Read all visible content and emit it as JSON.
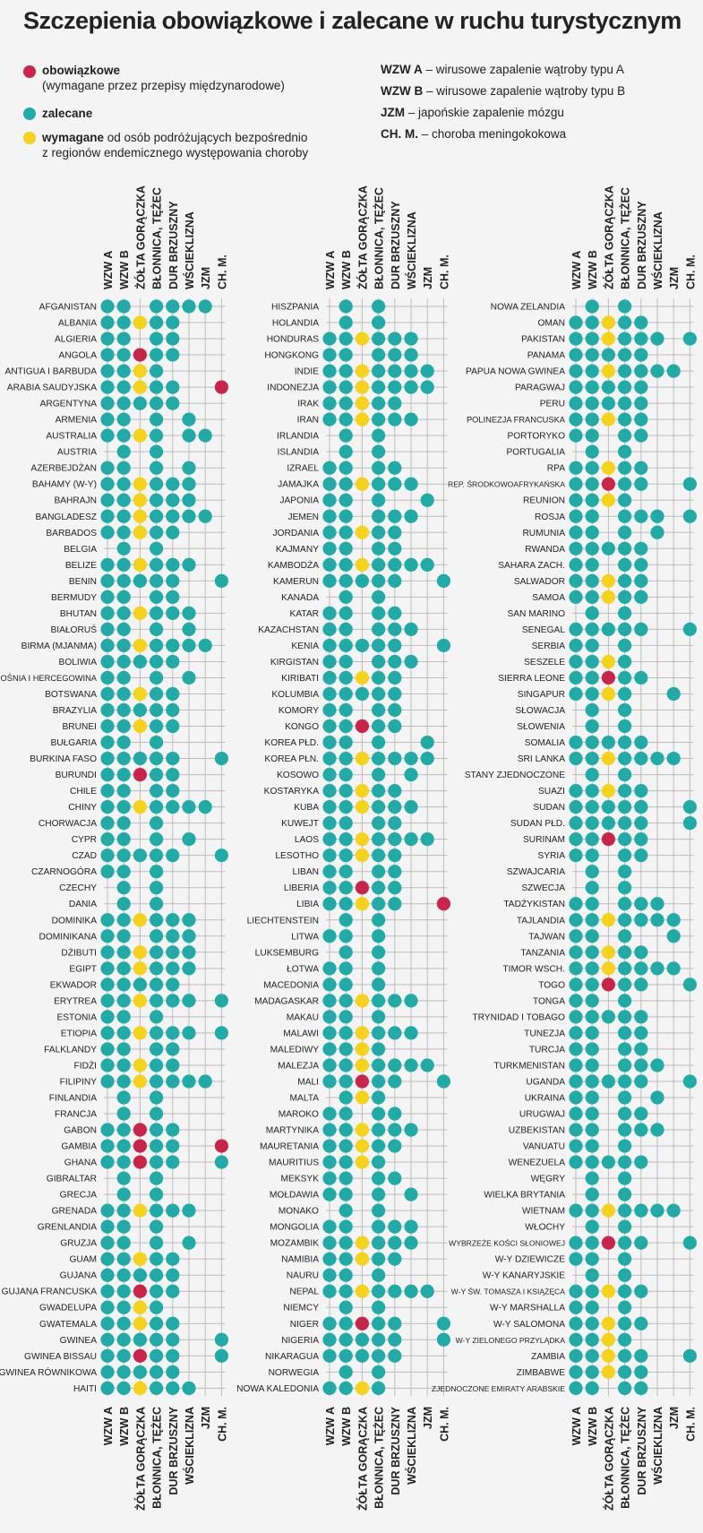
{
  "title": "Szczepienia obowiązkowe i zalecane w ruchu turystycznym",
  "colors": {
    "red": "#c8254a",
    "teal": "#22aaa6",
    "yellow": "#f5d21b",
    "grid": "#bdbdbd",
    "bg": "#f4f4f4"
  },
  "legend": {
    "mandatory_label": "obowiązkowe",
    "mandatory_note": "(wymagane przez przepisy międzynarodowe)",
    "recommended_label": "zalecane",
    "required_label": "wymagane",
    "required_note_1": " od osób podróżujących bezpośrednio",
    "required_note_2": "z regionów endemicznego występowania choroby"
  },
  "abbreviations": [
    {
      "abbr": "WZW A",
      "desc": " – wirusowe zapalenie wątroby typu A"
    },
    {
      "abbr": "WZW B",
      "desc": " – wirusowe zapalenie wątroby typu B"
    },
    {
      "abbr": "JZM",
      "desc": " – japońskie zapalenie mózgu"
    },
    {
      "abbr": "CH. M.",
      "desc": " – choroba meningokokowa"
    }
  ],
  "columns": [
    "WZW A",
    "WZW B",
    "ŻÓŁTA GORĄCZKA",
    "BŁONNICA, TĘŻEC",
    "DUR BRZUSZNY",
    "WŚCIEKLIZNA",
    "JZM",
    "CH. M."
  ],
  "panels": [
    {
      "rows": [
        [
          "AFGANISTAN",
          "tt.tttt.."
        ],
        [
          "ALBANIA",
          "ttytt..."
        ],
        [
          "ALGIERIA",
          "tt.tt..."
        ],
        [
          "ANGOLA",
          "ttrtt..."
        ],
        [
          "ANTIGUA I BARBUDA",
          "ttyt...."
        ],
        [
          "ARABIA SAUDYJSKA",
          "ttytt..r"
        ],
        [
          "ARGENTYNA",
          "ttttt..."
        ],
        [
          "ARMENIA",
          "tt.t.t.."
        ],
        [
          "AUSTRALIA",
          "ttyt.tt."
        ],
        [
          "AUSTRIA",
          ".t.t...."
        ],
        [
          "AZERBEJDŻAN",
          "tt.t.t.."
        ],
        [
          "BAHAMY (W-Y)",
          "ttyttt.."
        ],
        [
          "BAHRAJN",
          "ttyttt.."
        ],
        [
          "BANGLADESZ",
          "ttytttt."
        ],
        [
          "BARBADOS",
          "ttytt..."
        ],
        [
          "BELGIA",
          ".t.t...."
        ],
        [
          "BELIZE",
          "ttyttt.."
        ],
        [
          "BENIN",
          "ttttt..t"
        ],
        [
          "BERMUDY",
          "tt.tt..."
        ],
        [
          "BHUTAN",
          "ttyttt.."
        ],
        [
          "BIAŁORUŚ",
          "tt.t.t.."
        ],
        [
          "BIRMA (MJANMA)",
          "ttytttt."
        ],
        [
          "BOLIWIA",
          "ttttt..."
        ],
        [
          "BOŚNIA I HERCEGOWINA",
          "tt.t.t.."
        ],
        [
          "BOTSWANA",
          "ttytt..."
        ],
        [
          "BRAZYLIA",
          "ttttt..."
        ],
        [
          "BRUNEI",
          "ttytt..."
        ],
        [
          "BUŁGARIA",
          "tt.t...."
        ],
        [
          "BURKINA FASO",
          "ttttt..t"
        ],
        [
          "BURUNDI",
          "ttrtt..."
        ],
        [
          "CHILE",
          "tt.tt..."
        ],
        [
          "CHINY",
          "ttytttt."
        ],
        [
          "CHORWACJA",
          "tt.t...."
        ],
        [
          "CYPR",
          "tt.t.t.."
        ],
        [
          "CZAD",
          "ttttt..t"
        ],
        [
          "CZARNOGÓRA",
          "tt.t...."
        ],
        [
          "CZECHY",
          ".t.t...."
        ],
        [
          "DANIA",
          ".t.t...."
        ],
        [
          "DOMINIKA",
          "ttyttt.."
        ],
        [
          "DOMINIKANA",
          "tt.ttt.."
        ],
        [
          "DŻIBUTI",
          "ttyttt.."
        ],
        [
          "EGIPT",
          "ttyttt.."
        ],
        [
          "EKWADOR",
          "ttttt..."
        ],
        [
          "ERYTREA",
          "ttyttt.t"
        ],
        [
          "ESTONIA",
          "tt.t...."
        ],
        [
          "ETIOPIA",
          "ttyttt.t"
        ],
        [
          "FALKLANDY",
          "tt.tt..."
        ],
        [
          "FIDŻI",
          "ttytt..."
        ],
        [
          "FILIPINY",
          "ttytttt."
        ],
        [
          "FINLANDIA",
          ".t.t...."
        ],
        [
          "FRANCJA",
          ".t.t...."
        ],
        [
          "GABON",
          "ttrtt..."
        ],
        [
          "GAMBIA",
          "ttrtt..r"
        ],
        [
          "GHANA",
          "ttrtt..t"
        ],
        [
          "GIBRALTAR",
          ".t.t...."
        ],
        [
          "GRECJA",
          ".t.t...."
        ],
        [
          "GRENADA",
          "ttyttt.."
        ],
        [
          "GRENLANDIA",
          "tt.t...."
        ],
        [
          "GRUZJA",
          "tt.t.t.."
        ],
        [
          "GUAM",
          "ttytt..."
        ],
        [
          "GUJANA",
          "ttttt..."
        ],
        [
          "GUJANA FRANCUSKA",
          "ttrtt..."
        ],
        [
          "GWADELUPA",
          "ttyt...."
        ],
        [
          "GWATEMALA",
          "ttytt..."
        ],
        [
          "GWINEA",
          "ttttt..t"
        ],
        [
          "GWINEA BISSAU",
          "ttrtt..t"
        ],
        [
          "GWINEA RÓWNIKOWA",
          "ttttt..."
        ],
        [
          "HAITI",
          "ttyttt.."
        ]
      ]
    },
    {
      "rows": [
        [
          "HISZPANIA",
          ".t.t...."
        ],
        [
          "HOLANDIA",
          ".t.t...."
        ],
        [
          "HONDURAS",
          "ttyttt.."
        ],
        [
          "HONGKONG",
          "tt.ttt.."
        ],
        [
          "INDIE",
          "ttytttt."
        ],
        [
          "INDONEZJA",
          "ttytttt."
        ],
        [
          "IRAK",
          "ttytt..."
        ],
        [
          "IRAN",
          "ttyttt.."
        ],
        [
          "IRLANDIA",
          ".t.t...."
        ],
        [
          "ISLANDIA",
          ".t.t...."
        ],
        [
          "IZRAEL",
          "tt.tt..."
        ],
        [
          "JAMAJKA",
          "ttyttt.."
        ],
        [
          "JAPONIA",
          "tt.t..t."
        ],
        [
          "JEMEN",
          "tt.ttt.."
        ],
        [
          "JORDANIA",
          "ttytt..."
        ],
        [
          "KAJMANY",
          "tt.tt..."
        ],
        [
          "KAMBODŻA",
          "ttytttt."
        ],
        [
          "KAMERUN",
          "ttttt..t"
        ],
        [
          "KANADA",
          ".t.t...."
        ],
        [
          "KATAR",
          "tt.tt..."
        ],
        [
          "KAZACHSTAN",
          "tt.ttt.."
        ],
        [
          "KENIA",
          "ttttt..t"
        ],
        [
          "KIRGISTAN",
          "tt.ttt.."
        ],
        [
          "KIRIBATI",
          "ttytt..."
        ],
        [
          "KOLUMBIA",
          "ttttt..."
        ],
        [
          "KOMORY",
          "tt.tt..."
        ],
        [
          "KONGO",
          "ttrtt..."
        ],
        [
          "KOREA PŁD.",
          "tt.t..t."
        ],
        [
          "KOREA PŁN.",
          "ttytttt."
        ],
        [
          "KOSOWO",
          "tt.t.t.."
        ],
        [
          "KOSTARYKA",
          "ttytt..."
        ],
        [
          "KUBA",
          "ttyttt.."
        ],
        [
          "KUWEJT",
          "tt.tt..."
        ],
        [
          "LAOS",
          "ttytttt."
        ],
        [
          "LESOTHO",
          "ttytt..."
        ],
        [
          "LIBAN",
          "tt.tt..."
        ],
        [
          "LIBERIA",
          "ttrtt..."
        ],
        [
          "LIBIA",
          "ttytt..r"
        ],
        [
          "LIECHTENSTEIN",
          ".t.t...."
        ],
        [
          "LITWA",
          "tt.t...."
        ],
        [
          "LUKSEMBURG",
          ".t.t...."
        ],
        [
          "ŁOTWA",
          "tt.t...."
        ],
        [
          "MACEDONIA",
          "tt.t...."
        ],
        [
          "MADAGASKAR",
          "ttyttt.."
        ],
        [
          "MAKAU",
          "tt.t...."
        ],
        [
          "MALAWI",
          "ttyttt.."
        ],
        [
          "MALEDIWY",
          "ttyt...."
        ],
        [
          "MALEZJA",
          "ttytttt."
        ],
        [
          "MALI",
          "ttrtt..t"
        ],
        [
          "MALTA",
          ".tyt...."
        ],
        [
          "MAROKO",
          "tt.tt..."
        ],
        [
          "MARTYNIKA",
          "ttyttt.."
        ],
        [
          "MAURETANIA",
          "ttytt..."
        ],
        [
          "MAURITIUS",
          "ttyt...."
        ],
        [
          "MEKSYK",
          "tt.tt..."
        ],
        [
          "MOŁDAWIA",
          "tt.t.t.."
        ],
        [
          "MONAKO",
          ".t.t...."
        ],
        [
          "MONGOLIA",
          "tt.ttt.."
        ],
        [
          "MOZAMBIK",
          "ttyttt.."
        ],
        [
          "NAMIBIA",
          "ttytt..."
        ],
        [
          "NAURU",
          "tt.t...."
        ],
        [
          "NEPAL",
          "ttytttt."
        ],
        [
          "NIEMCY",
          ".t.t...."
        ],
        [
          "NIGER",
          "ttrtt..t"
        ],
        [
          "NIGERIA",
          "ttttt..t"
        ],
        [
          "NIKARAGUA",
          "ttttt..."
        ],
        [
          "NORWEGIA",
          ".t.t...."
        ],
        [
          "NOWA KALEDONIA",
          "ttyt...."
        ]
      ]
    },
    {
      "rows": [
        [
          "NOWA ZELANDIA",
          ".t.t...."
        ],
        [
          "OMAN",
          "ttytt..."
        ],
        [
          "PAKISTAN",
          "ttyttt.t"
        ],
        [
          "PANAMA",
          "ttttt..."
        ],
        [
          "PAPUA NOWA GWINEA",
          "ttytttt."
        ],
        [
          "PARAGWAJ",
          "ttttt..."
        ],
        [
          "PERU",
          "ttttt..."
        ],
        [
          "POLINEZJA FRANCUSKA",
          "ttytt..."
        ],
        [
          "PORTORYKO",
          "tt.tt..."
        ],
        [
          "PORTUGALIA",
          ".t.t...."
        ],
        [
          "RPA",
          "ttytt..."
        ],
        [
          "REP. ŚRODKOWOAFRYKAŃSKA",
          "ttrtt..t"
        ],
        [
          "REUNION",
          "ttyt...."
        ],
        [
          "ROSJA",
          "tt.ttt.t"
        ],
        [
          "RUMUNIA",
          "tt.t.t.."
        ],
        [
          "RWANDA",
          "ttttt..."
        ],
        [
          "SAHARA ZACH.",
          "tt.tt..."
        ],
        [
          "SALWADOR",
          "ttytt..."
        ],
        [
          "SAMOA",
          "ttytt..."
        ],
        [
          "SAN MARINO",
          ".t.t...."
        ],
        [
          "SENEGAL",
          "ttttt..t"
        ],
        [
          "SERBIA",
          "tt.t...."
        ],
        [
          "SESZELE",
          "ttyt...."
        ],
        [
          "SIERRA LEONE",
          "ttrtt..."
        ],
        [
          "SINGAPUR",
          "ttyt..t."
        ],
        [
          "SŁOWACJA",
          ".t.t...."
        ],
        [
          "SŁOWENIA",
          ".t.t...."
        ],
        [
          "SOMALIA",
          "ttttt..."
        ],
        [
          "SRI LANKA",
          "ttytttt."
        ],
        [
          "STANY ZJEDNOCZONE",
          ".t.t...."
        ],
        [
          "SUAZI",
          "ttytt..."
        ],
        [
          "SUDAN",
          "ttttt..t"
        ],
        [
          "SUDAN PŁD.",
          "ttttt..t"
        ],
        [
          "SURINAM",
          "ttrtt..."
        ],
        [
          "SYRIA",
          "tt.tt..."
        ],
        [
          "SZWAJCARIA",
          ".t.t...."
        ],
        [
          "SZWECJA",
          ".t.t...."
        ],
        [
          "TADŻYKISTAN",
          "tt.ttt.."
        ],
        [
          "TAJLANDIA",
          "ttytttt."
        ],
        [
          "TAJWAN",
          "tt.t..t."
        ],
        [
          "TANZANIA",
          "ttytt..."
        ],
        [
          "TIMOR WSCH.",
          "ttytttt."
        ],
        [
          "TOGO",
          "ttrtt..t"
        ],
        [
          "TONGA",
          "tt.t...."
        ],
        [
          "TRYNIDAD I TOBAGO",
          "ttttt..."
        ],
        [
          "TUNEZJA",
          "tt.tt..."
        ],
        [
          "TURCJA",
          "tt.tt..."
        ],
        [
          "TURKMENISTAN",
          "tt.ttt.."
        ],
        [
          "UGANDA",
          "ttttt..t"
        ],
        [
          "UKRAINA",
          "tt.t.t.."
        ],
        [
          "URUGWAJ",
          "tt.tt..."
        ],
        [
          "UZBEKISTAN",
          "tt.ttt.."
        ],
        [
          "VANUATU",
          "tt.t...."
        ],
        [
          "WENEZUELA",
          "ttttt..."
        ],
        [
          "WĘGRY",
          ".t.t...."
        ],
        [
          "WIELKA BRYTANIA",
          ".t.t...."
        ],
        [
          "WIETNAM",
          "ttytttt."
        ],
        [
          "WŁOCHY",
          ".t.t...."
        ],
        [
          "WYBRZEŻE KOŚCI SŁONIOWEJ",
          "ttrtt..t"
        ],
        [
          "W-Y DZIEWICZE",
          "tt.t...."
        ],
        [
          "W-Y KANARYJSKIE",
          ".t.t...."
        ],
        [
          "W-Y ŚW. TOMASZA I KSIĄŻĘCA",
          "ttytt..."
        ],
        [
          "W-Y MARSHALLA",
          "tt.t...."
        ],
        [
          "W-Y SALOMONA",
          "ttytt..."
        ],
        [
          "W-Y ZIELONEGO PRZYLĄDKA",
          "ttyt...."
        ],
        [
          "ZAMBIA",
          "ttytt..t"
        ],
        [
          "ZIMBABWE",
          "ttytt..."
        ],
        [
          "ZJEDNOCZONE EMIRATY ARABSKIE",
          "tt.tt..."
        ]
      ]
    }
  ]
}
